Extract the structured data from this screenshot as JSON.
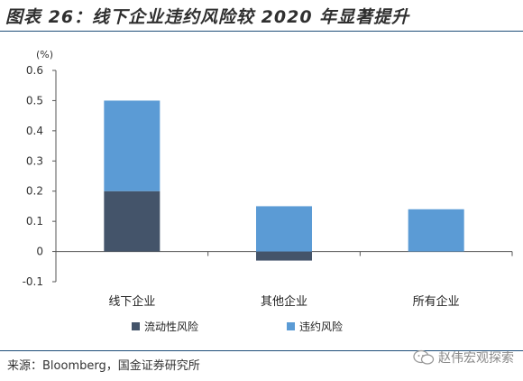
{
  "header": {
    "title": "图表 26：线下企业违约风险较 2020 年显著提升"
  },
  "chart_data": {
    "type": "bar",
    "stacked": true,
    "unit_label": "(%)",
    "categories": [
      "线下企业",
      "其他企业",
      "所有企业"
    ],
    "series": [
      {
        "name": "流动性风险",
        "values": [
          0.2,
          -0.03,
          0.0
        ],
        "color": "#44546a"
      },
      {
        "name": "违约风险",
        "values": [
          0.3,
          0.15,
          0.14
        ],
        "color": "#5b9bd5"
      }
    ],
    "ylim": [
      -0.1,
      0.6
    ],
    "yticks": [
      "0.6",
      "0.5",
      "0.4",
      "0.3",
      "0.2",
      "0.1",
      "0",
      "-0.1"
    ],
    "ytick_values": [
      0.6,
      0.5,
      0.4,
      0.3,
      0.2,
      0.1,
      0,
      -0.1
    ],
    "grid": false,
    "legend_position": "bottom"
  },
  "footer": {
    "source": "来源：Bloomberg，国金证券研究所",
    "watermark": "赵伟宏观探索"
  }
}
